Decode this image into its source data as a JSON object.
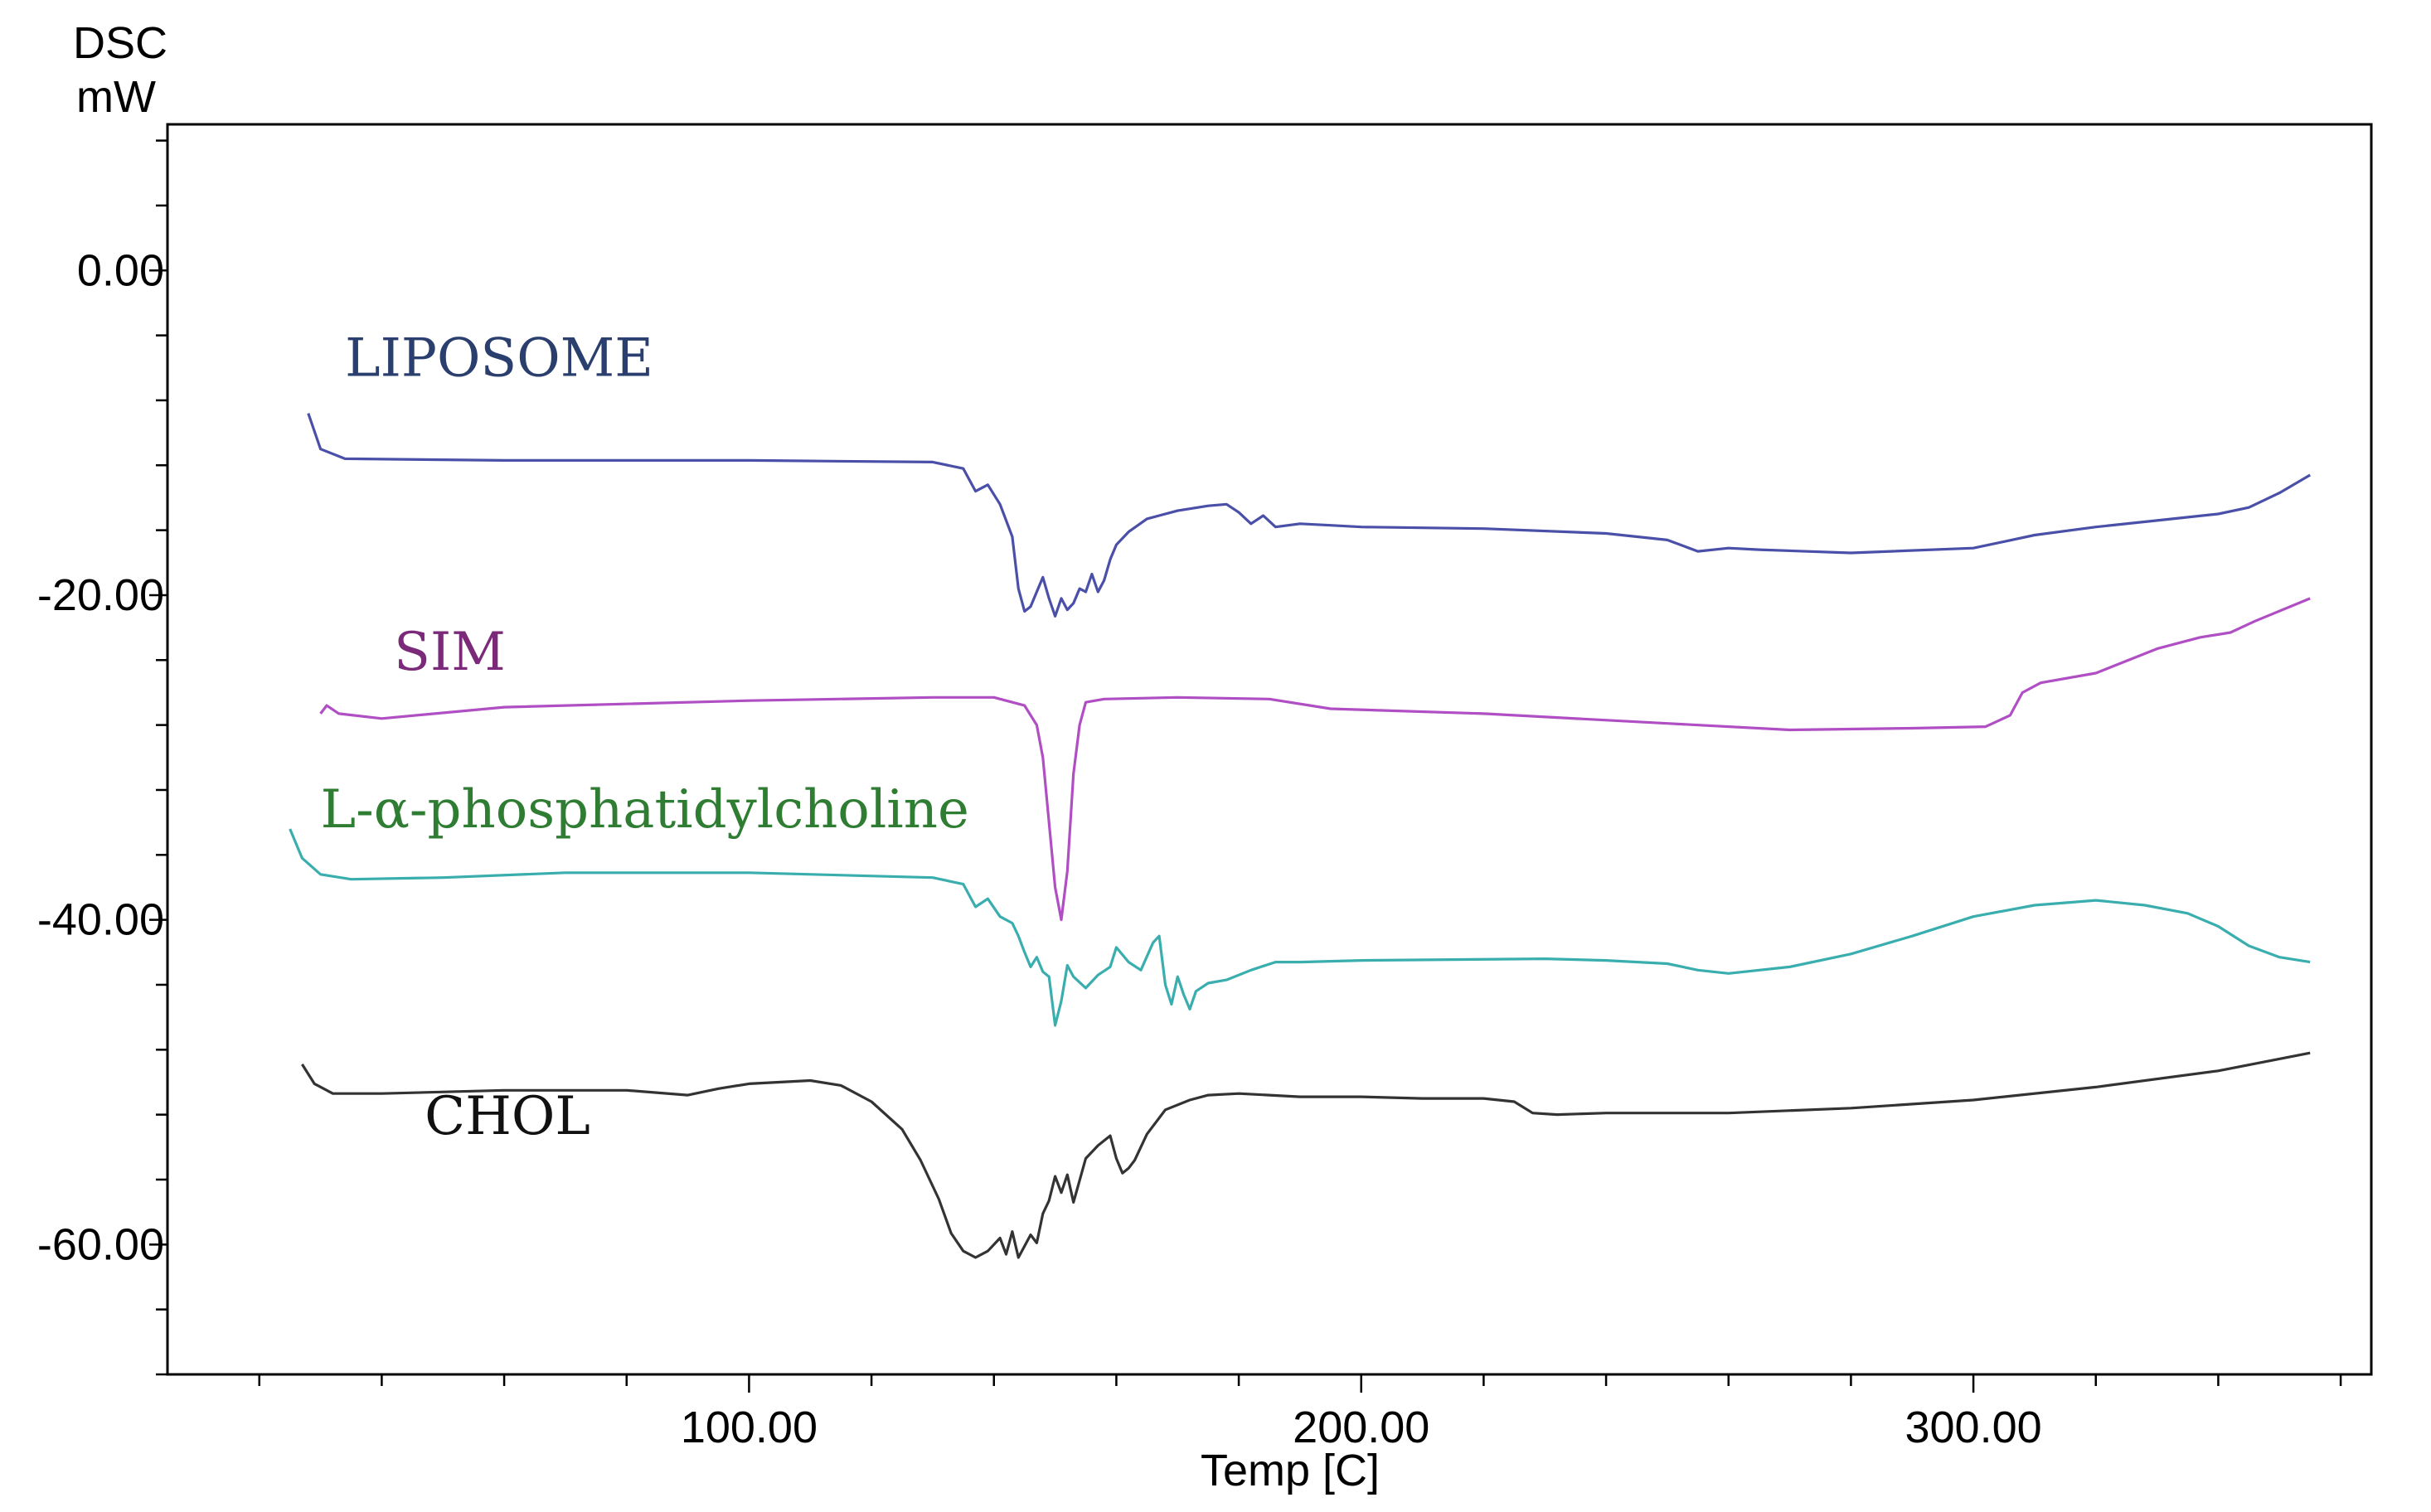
{
  "chart_data": {
    "type": "line",
    "title": "",
    "ylabel_line1": "DSC",
    "ylabel_line2": "mW",
    "xlabel": "Temp  [C]",
    "xlim": [
      5,
      365
    ],
    "ylim": [
      -68,
      9
    ],
    "x_ticks": [
      {
        "value": 100,
        "label": "100.00"
      },
      {
        "value": 200,
        "label": "200.00"
      },
      {
        "value": 300,
        "label": "300.00"
      }
    ],
    "y_ticks": [
      {
        "value": 0,
        "label": "0.00"
      },
      {
        "value": -20,
        "label": "-20.00"
      },
      {
        "value": -40,
        "label": "-40.00"
      },
      {
        "value": -60,
        "label": "-60.00"
      }
    ],
    "x_minor_step": 20,
    "y_minor_step": 4,
    "series": [
      {
        "name": "LIPOSOME",
        "color": "#4a4fa8",
        "label_color": "#2b3f6e",
        "label_at": [
          34,
          -6.5
        ],
        "points": [
          [
            28,
            -8.8
          ],
          [
            30,
            -11
          ],
          [
            34,
            -11.6
          ],
          [
            60,
            -11.7
          ],
          [
            100,
            -11.7
          ],
          [
            130,
            -11.8
          ],
          [
            135,
            -12.2
          ],
          [
            137,
            -13.6
          ],
          [
            139,
            -13.2
          ],
          [
            141,
            -14.4
          ],
          [
            143,
            -16.4
          ],
          [
            144,
            -19.6
          ],
          [
            145,
            -21
          ],
          [
            146,
            -20.7
          ],
          [
            147,
            -19.8
          ],
          [
            148,
            -18.9
          ],
          [
            149,
            -20.2
          ],
          [
            150,
            -21.3
          ],
          [
            151,
            -20.2
          ],
          [
            152,
            -20.9
          ],
          [
            153,
            -20.5
          ],
          [
            154,
            -19.6
          ],
          [
            155,
            -19.8
          ],
          [
            156,
            -18.7
          ],
          [
            157,
            -19.8
          ],
          [
            158,
            -19.1
          ],
          [
            159,
            -17.8
          ],
          [
            160,
            -16.9
          ],
          [
            162,
            -16.1
          ],
          [
            165,
            -15.3
          ],
          [
            170,
            -14.8
          ],
          [
            175,
            -14.5
          ],
          [
            178,
            -14.4
          ],
          [
            180,
            -14.9
          ],
          [
            182,
            -15.6
          ],
          [
            184,
            -15.1
          ],
          [
            186,
            -15.8
          ],
          [
            190,
            -15.6
          ],
          [
            195,
            -15.7
          ],
          [
            200,
            -15.8
          ],
          [
            220,
            -15.9
          ],
          [
            240,
            -16.2
          ],
          [
            250,
            -16.6
          ],
          [
            255,
            -17.3
          ],
          [
            260,
            -17.1
          ],
          [
            265,
            -17.2
          ],
          [
            280,
            -17.4
          ],
          [
            300,
            -17.1
          ],
          [
            310,
            -16.3
          ],
          [
            320,
            -15.8
          ],
          [
            330,
            -15.4
          ],
          [
            340,
            -15
          ],
          [
            345,
            -14.6
          ],
          [
            350,
            -13.7
          ],
          [
            355,
            -12.6
          ]
        ]
      },
      {
        "name": "SIM",
        "color": "#b04fc4",
        "label_color": "#7a2a78",
        "label_at": [
          42,
          -24.6
        ],
        "points": [
          [
            30,
            -27.3
          ],
          [
            31,
            -26.8
          ],
          [
            33,
            -27.3
          ],
          [
            40,
            -27.6
          ],
          [
            60,
            -26.9
          ],
          [
            100,
            -26.5
          ],
          [
            130,
            -26.3
          ],
          [
            140,
            -26.3
          ],
          [
            145,
            -26.8
          ],
          [
            147,
            -28
          ],
          [
            148,
            -30
          ],
          [
            149,
            -34
          ],
          [
            150,
            -38
          ],
          [
            151,
            -40
          ],
          [
            152,
            -37
          ],
          [
            153,
            -31
          ],
          [
            154,
            -28
          ],
          [
            155,
            -26.6
          ],
          [
            158,
            -26.4
          ],
          [
            170,
            -26.3
          ],
          [
            185,
            -26.4
          ],
          [
            195,
            -27
          ],
          [
            220,
            -27.3
          ],
          [
            250,
            -27.9
          ],
          [
            270,
            -28.3
          ],
          [
            290,
            -28.2
          ],
          [
            302,
            -28.1
          ],
          [
            306,
            -27.4
          ],
          [
            308,
            -26
          ],
          [
            311,
            -25.4
          ],
          [
            320,
            -24.8
          ],
          [
            330,
            -23.3
          ],
          [
            337,
            -22.6
          ],
          [
            342,
            -22.3
          ],
          [
            346,
            -21.6
          ],
          [
            355,
            -20.2
          ]
        ]
      },
      {
        "name": "L-α-phosphatidylcholine",
        "color": "#3aaeae",
        "label_color": "#2e7d32",
        "label_at": [
          30,
          -34.3
        ],
        "points": [
          [
            25,
            -34.4
          ],
          [
            27,
            -36.2
          ],
          [
            30,
            -37.2
          ],
          [
            35,
            -37.5
          ],
          [
            50,
            -37.4
          ],
          [
            70,
            -37.1
          ],
          [
            100,
            -37.1
          ],
          [
            130,
            -37.4
          ],
          [
            135,
            -37.8
          ],
          [
            137,
            -39.2
          ],
          [
            139,
            -38.7
          ],
          [
            141,
            -39.8
          ],
          [
            143,
            -40.2
          ],
          [
            144,
            -41
          ],
          [
            145,
            -42
          ],
          [
            146,
            -42.9
          ],
          [
            147,
            -42.3
          ],
          [
            148,
            -43.2
          ],
          [
            149,
            -43.5
          ],
          [
            150,
            -46.5
          ],
          [
            151,
            -45
          ],
          [
            152,
            -42.8
          ],
          [
            153,
            -43.5
          ],
          [
            155,
            -44.2
          ],
          [
            157,
            -43.4
          ],
          [
            159,
            -42.9
          ],
          [
            160,
            -41.7
          ],
          [
            162,
            -42.6
          ],
          [
            164,
            -43.1
          ],
          [
            166,
            -41.4
          ],
          [
            167,
            -41
          ],
          [
            168,
            -44
          ],
          [
            169,
            -45.2
          ],
          [
            170,
            -43.5
          ],
          [
            171,
            -44.6
          ],
          [
            172,
            -45.5
          ],
          [
            173,
            -44.4
          ],
          [
            175,
            -43.9
          ],
          [
            178,
            -43.7
          ],
          [
            182,
            -43.1
          ],
          [
            186,
            -42.6
          ],
          [
            190,
            -42.6
          ],
          [
            200,
            -42.5
          ],
          [
            230,
            -42.4
          ],
          [
            240,
            -42.5
          ],
          [
            250,
            -42.7
          ],
          [
            255,
            -43.1
          ],
          [
            260,
            -43.3
          ],
          [
            270,
            -42.9
          ],
          [
            280,
            -42.1
          ],
          [
            290,
            -41
          ],
          [
            300,
            -39.8
          ],
          [
            310,
            -39.1
          ],
          [
            320,
            -38.8
          ],
          [
            328,
            -39.1
          ],
          [
            335,
            -39.6
          ],
          [
            340,
            -40.4
          ],
          [
            345,
            -41.6
          ],
          [
            350,
            -42.3
          ],
          [
            355,
            -42.6
          ]
        ]
      },
      {
        "name": "CHOL",
        "color": "#333333",
        "label_color": "#111111",
        "label_at": [
          47,
          -53.2
        ],
        "points": [
          [
            27,
            -48.9
          ],
          [
            29,
            -50.1
          ],
          [
            32,
            -50.7
          ],
          [
            40,
            -50.7
          ],
          [
            60,
            -50.5
          ],
          [
            80,
            -50.5
          ],
          [
            90,
            -50.8
          ],
          [
            95,
            -50.4
          ],
          [
            100,
            -50.1
          ],
          [
            110,
            -49.9
          ],
          [
            115,
            -50.2
          ],
          [
            120,
            -51.2
          ],
          [
            125,
            -52.9
          ],
          [
            128,
            -54.8
          ],
          [
            131,
            -57.2
          ],
          [
            133,
            -59.3
          ],
          [
            135,
            -60.4
          ],
          [
            137,
            -60.8
          ],
          [
            139,
            -60.4
          ],
          [
            141,
            -59.6
          ],
          [
            142,
            -60.6
          ],
          [
            143,
            -59.2
          ],
          [
            144,
            -60.8
          ],
          [
            145,
            -60.1
          ],
          [
            146,
            -59.4
          ],
          [
            147,
            -59.9
          ],
          [
            148,
            -58.1
          ],
          [
            149,
            -57.3
          ],
          [
            150,
            -55.8
          ],
          [
            151,
            -56.8
          ],
          [
            152,
            -55.7
          ],
          [
            153,
            -57.4
          ],
          [
            155,
            -54.7
          ],
          [
            157,
            -53.9
          ],
          [
            159,
            -53.3
          ],
          [
            160,
            -54.7
          ],
          [
            161,
            -55.6
          ],
          [
            162,
            -55.3
          ],
          [
            163,
            -54.8
          ],
          [
            165,
            -53.2
          ],
          [
            168,
            -51.7
          ],
          [
            172,
            -51.1
          ],
          [
            175,
            -50.8
          ],
          [
            180,
            -50.7
          ],
          [
            190,
            -50.9
          ],
          [
            200,
            -50.9
          ],
          [
            210,
            -51
          ],
          [
            220,
            -51
          ],
          [
            225,
            -51.2
          ],
          [
            228,
            -51.9
          ],
          [
            232,
            -52
          ],
          [
            240,
            -51.9
          ],
          [
            250,
            -51.9
          ],
          [
            260,
            -51.9
          ],
          [
            280,
            -51.6
          ],
          [
            300,
            -51.1
          ],
          [
            320,
            -50.3
          ],
          [
            340,
            -49.3
          ],
          [
            355,
            -48.2
          ]
        ]
      }
    ]
  }
}
